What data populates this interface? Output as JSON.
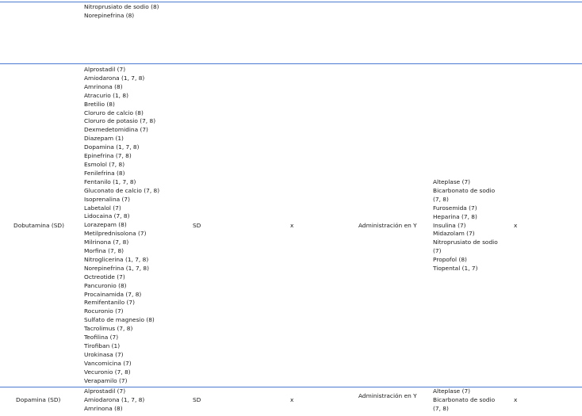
{
  "top_row": {
    "compatibles": [
      "Nitroprusiato de sodio (8)",
      "Norepinefrina (8)"
    ]
  },
  "dobutamina_row": {
    "drug": "Dobutamina (SD)",
    "dilution": "SD",
    "mark1": "x",
    "admin": "Administración en Y",
    "mark2": "x",
    "compatibles": [
      "Alprostadil (7)",
      "Amiodarona (1, 7, 8)",
      "Amrinona (8)",
      "Atracurio (1, 8)",
      "Bretilio (8)",
      "Cloruro de calcio (8)",
      "Cloruro de potasio (7, 8)",
      "Dexmedetomidina (7)",
      "Diazepam (1)",
      "Dopamina (1, 7, 8)",
      "Epinefrina (7, 8)",
      "Esmolol (7, 8)",
      "Fenilefrina (8)",
      "Fentanilo (1, 7, 8)",
      "Gluconato de calcio (7, 8)",
      "Isoprenalina (7)",
      "Labetalol (7)",
      "Lidocaina (7, 8)",
      "Lorazepam (8)",
      "Metilprednisolona (7)",
      "Milrinona (7, 8)",
      "Morfina (7, 8)",
      "Nitroglicerina (1, 7, 8)",
      "Norepinefrina (1, 7, 8)",
      "Octreotide  (7)",
      "Pancuronio (8)",
      "Procainamida (7, 8)",
      "Remifentanilo (7)",
      "Rocuronio (7)",
      "Sulfato de magnesio (8)",
      "Tacrolimus (7, 8)",
      "Teofilina (7)",
      "Tirofiban (1)",
      "Urokinasa (7)",
      "Vancomicina (7)",
      "Vecuronio (7, 8)",
      "Verapamilo (7)"
    ],
    "incompatibles": [
      "Alteplase (7)",
      "Bicarbonato de sodio",
      "(7, 8)",
      "Furosemida (7)",
      "Heparina (7, 8)",
      "Insulina (7)",
      "Midazolam (7)",
      "Nitroprusiato de sodio",
      "(7)",
      "Propofol (8)",
      "Tiopental (1, 7)"
    ]
  },
  "dopamina_row": {
    "drug": "Dopamina (SD)",
    "dilution": "SD",
    "mark1": "x",
    "admin": "Administración en Y",
    "mark2": "x",
    "compatibles": [
      "Alprostadil (7)",
      "Amiodarona (1, 7, 8)",
      "Amrinona (8)"
    ],
    "incompatibles": [
      "Alteplase (7)",
      "Bicarbonato de sodio",
      "(7, 8)"
    ]
  }
}
